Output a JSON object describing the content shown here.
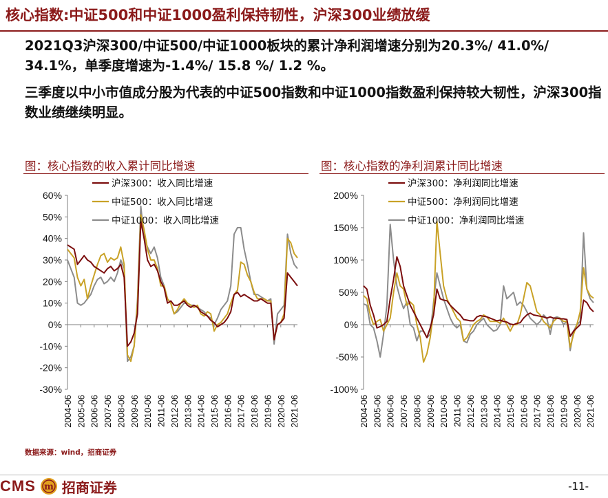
{
  "header": {
    "title": "核心指数:中证500和中证1000盈利保持韧性，沪深300业绩放缓"
  },
  "bullets": [
    "2021Q3沪深300/中证500/中证1000板块的累计净利润增速分别为20.3%/ 41.0%/ 34.1%，单季度增速为-1.4%/ 15.8 %/ 1.2 %。",
    "三季度以中小市值成分股为代表的中证500指数和中证1000指数盈利保持较大韧性，沪深300指数业绩继续明显。"
  ],
  "colors": {
    "brand": "#8b1a1a",
    "hs300": "#7b0d0d",
    "zz500": "#c9a227",
    "zz1000": "#8c8c8c"
  },
  "chart_data": [
    {
      "type": "line",
      "title": "图：核心指数的收入累计同比增速",
      "ylim": [
        -0.3,
        0.6
      ],
      "yticks": [
        "60%",
        "50%",
        "40%",
        "30%",
        "20%",
        "10%",
        "0%",
        "-10%",
        "-20%",
        "-30%"
      ],
      "ytick_values": [
        0.6,
        0.5,
        0.4,
        0.3,
        0.2,
        0.1,
        0.0,
        -0.1,
        -0.2,
        -0.3
      ],
      "xticks": [
        "2004-06",
        "2005-06",
        "2006-06",
        "2007-06",
        "2008-06",
        "2009-06",
        "2010-06",
        "2011-06",
        "2012-06",
        "2013-06",
        "2014-06",
        "2015-06",
        "2016-06",
        "2017-06",
        "2018-06",
        "2019-06",
        "2020-06",
        "2021-06"
      ],
      "x_start": 2004.5,
      "x_end": 2021.75,
      "legend_placement": "top-left",
      "series": [
        {
          "name": "沪深300：收入同比增速",
          "color_key": "hs300",
          "x": [
            2004.5,
            2004.75,
            2005.0,
            2005.25,
            2005.5,
            2005.75,
            2006.0,
            2006.25,
            2006.5,
            2006.75,
            2007.0,
            2007.25,
            2007.5,
            2007.75,
            2008.0,
            2008.25,
            2008.5,
            2008.75,
            2009.0,
            2009.25,
            2009.5,
            2009.75,
            2010.0,
            2010.25,
            2010.5,
            2010.75,
            2011.0,
            2011.25,
            2011.5,
            2011.75,
            2012.0,
            2012.25,
            2012.5,
            2012.75,
            2013.0,
            2013.25,
            2013.5,
            2013.75,
            2014.0,
            2014.25,
            2014.5,
            2014.75,
            2015.0,
            2015.25,
            2015.5,
            2015.75,
            2016.0,
            2016.25,
            2016.5,
            2016.75,
            2017.0,
            2017.25,
            2017.5,
            2017.75,
            2018.0,
            2018.25,
            2018.5,
            2018.75,
            2019.0,
            2019.25,
            2019.5,
            2019.75,
            2020.0,
            2020.25,
            2020.5,
            2020.75,
            2021.0,
            2021.25,
            2021.5,
            2021.75
          ],
          "values": [
            0.37,
            0.36,
            0.35,
            0.28,
            0.3,
            0.32,
            0.3,
            0.29,
            0.27,
            0.26,
            0.25,
            0.24,
            0.26,
            0.27,
            0.25,
            0.26,
            0.28,
            0.22,
            -0.1,
            -0.08,
            -0.04,
            0.05,
            0.48,
            0.4,
            0.3,
            0.27,
            0.28,
            0.25,
            0.2,
            0.17,
            0.1,
            0.11,
            0.09,
            0.09,
            0.1,
            0.11,
            0.09,
            0.08,
            0.09,
            0.08,
            0.06,
            0.05,
            0.04,
            0.02,
            0.01,
            -0.01,
            0.0,
            0.01,
            0.03,
            0.06,
            0.14,
            0.15,
            0.13,
            0.14,
            0.13,
            0.12,
            0.11,
            0.11,
            0.12,
            0.11,
            0.1,
            0.1,
            -0.07,
            0.0,
            0.01,
            0.03,
            0.24,
            0.22,
            0.2,
            0.18
          ]
        },
        {
          "name": "中证500：收入同比增速",
          "color_key": "zz500",
          "x": [
            2004.5,
            2004.75,
            2005.0,
            2005.25,
            2005.5,
            2005.75,
            2006.0,
            2006.25,
            2006.5,
            2006.75,
            2007.0,
            2007.25,
            2007.5,
            2007.75,
            2008.0,
            2008.25,
            2008.5,
            2008.75,
            2009.0,
            2009.25,
            2009.5,
            2009.75,
            2010.0,
            2010.25,
            2010.5,
            2010.75,
            2011.0,
            2011.25,
            2011.5,
            2011.75,
            2012.0,
            2012.25,
            2012.5,
            2012.75,
            2013.0,
            2013.25,
            2013.5,
            2013.75,
            2014.0,
            2014.25,
            2014.5,
            2014.75,
            2015.0,
            2015.25,
            2015.5,
            2015.75,
            2016.0,
            2016.25,
            2016.5,
            2016.75,
            2017.0,
            2017.25,
            2017.5,
            2017.75,
            2018.0,
            2018.25,
            2018.5,
            2018.75,
            2019.0,
            2019.25,
            2019.5,
            2019.75,
            2020.0,
            2020.25,
            2020.5,
            2020.75,
            2021.0,
            2021.25,
            2021.5,
            2021.75
          ],
          "values": [
            0.35,
            0.33,
            0.31,
            0.22,
            0.18,
            0.21,
            0.12,
            0.18,
            0.23,
            0.28,
            0.32,
            0.33,
            0.29,
            0.31,
            0.3,
            0.31,
            0.36,
            0.28,
            -0.14,
            -0.17,
            -0.1,
            0.1,
            0.51,
            0.44,
            0.35,
            0.3,
            0.3,
            0.26,
            0.18,
            0.18,
            0.12,
            0.1,
            0.05,
            0.07,
            0.1,
            0.12,
            0.1,
            0.09,
            0.08,
            0.09,
            0.05,
            0.04,
            0.06,
            0.05,
            -0.03,
            0.0,
            0.01,
            0.03,
            0.05,
            0.1,
            0.14,
            0.16,
            0.29,
            0.28,
            0.23,
            0.2,
            0.15,
            0.12,
            0.12,
            0.12,
            0.11,
            0.11,
            -0.07,
            0.0,
            0.01,
            0.05,
            0.4,
            0.38,
            0.33,
            0.31
          ]
        },
        {
          "name": "中证1000：收入同比增速",
          "color_key": "zz1000",
          "x": [
            2004.5,
            2004.75,
            2005.0,
            2005.25,
            2005.5,
            2005.75,
            2006.0,
            2006.25,
            2006.5,
            2006.75,
            2007.0,
            2007.25,
            2007.5,
            2007.75,
            2008.0,
            2008.25,
            2008.5,
            2008.75,
            2009.0,
            2009.25,
            2009.5,
            2009.75,
            2010.0,
            2010.25,
            2010.5,
            2010.75,
            2011.0,
            2011.25,
            2011.5,
            2011.75,
            2012.0,
            2012.25,
            2012.5,
            2012.75,
            2013.0,
            2013.25,
            2013.5,
            2013.75,
            2014.0,
            2014.25,
            2014.5,
            2014.75,
            2015.0,
            2015.25,
            2015.5,
            2015.75,
            2016.0,
            2016.25,
            2016.5,
            2016.75,
            2017.0,
            2017.25,
            2017.5,
            2017.75,
            2018.0,
            2018.25,
            2018.5,
            2018.75,
            2019.0,
            2019.25,
            2019.5,
            2019.75,
            2020.0,
            2020.25,
            2020.5,
            2020.75,
            2021.0,
            2021.25,
            2021.5,
            2021.75
          ],
          "values": [
            0.3,
            0.26,
            0.22,
            0.1,
            0.09,
            0.1,
            0.12,
            0.14,
            0.18,
            0.21,
            0.22,
            0.19,
            0.2,
            0.22,
            0.2,
            0.24,
            0.3,
            0.26,
            -0.17,
            -0.15,
            -0.1,
            0.12,
            0.55,
            0.4,
            0.36,
            0.33,
            0.36,
            0.31,
            0.22,
            0.18,
            0.12,
            0.1,
            0.05,
            0.06,
            0.08,
            0.1,
            0.1,
            0.09,
            0.09,
            0.08,
            0.07,
            0.06,
            0.04,
            0.03,
            0.0,
            0.03,
            0.07,
            0.09,
            0.11,
            0.18,
            0.42,
            0.45,
            0.45,
            0.35,
            0.28,
            0.2,
            0.14,
            0.14,
            0.13,
            0.12,
            0.11,
            0.12,
            -0.09,
            0.05,
            0.07,
            0.09,
            0.42,
            0.33,
            0.28,
            0.26
          ]
        }
      ]
    },
    {
      "type": "line",
      "title": "图：核心指数的净利润累计同比增速",
      "ylim": [
        -1.0,
        2.0
      ],
      "yticks": [
        "200%",
        "150%",
        "100%",
        "50%",
        "0%",
        "-50%",
        "-100%"
      ],
      "ytick_values": [
        2.0,
        1.5,
        1.0,
        0.5,
        0.0,
        -0.5,
        -1.0
      ],
      "xticks": [
        "2004-06",
        "2005-06",
        "2006-06",
        "2007-06",
        "2008-06",
        "2009-06",
        "2010-06",
        "2011-06",
        "2012-06",
        "2013-06",
        "2014-06",
        "2015-06",
        "2016-06",
        "2017-06",
        "2018-06",
        "2019-06",
        "2020-06",
        "2021-06"
      ],
      "x_start": 2004.5,
      "x_end": 2021.75,
      "legend_placement": "top-left",
      "series": [
        {
          "name": "沪深300：净利润同比增速",
          "color_key": "hs300",
          "x": [
            2004.5,
            2004.75,
            2005.0,
            2005.25,
            2005.5,
            2005.75,
            2006.0,
            2006.25,
            2006.5,
            2006.75,
            2007.0,
            2007.25,
            2007.5,
            2007.75,
            2008.0,
            2008.25,
            2008.5,
            2008.75,
            2009.0,
            2009.25,
            2009.5,
            2009.75,
            2010.0,
            2010.25,
            2010.5,
            2010.75,
            2011.0,
            2011.25,
            2011.5,
            2011.75,
            2012.0,
            2012.25,
            2012.5,
            2012.75,
            2013.0,
            2013.25,
            2013.5,
            2013.75,
            2014.0,
            2014.25,
            2014.5,
            2014.75,
            2015.0,
            2015.25,
            2015.5,
            2015.75,
            2016.0,
            2016.25,
            2016.5,
            2016.75,
            2017.0,
            2017.25,
            2017.5,
            2017.75,
            2018.0,
            2018.25,
            2018.5,
            2018.75,
            2019.0,
            2019.25,
            2019.5,
            2019.75,
            2020.0,
            2020.25,
            2020.5,
            2020.75,
            2021.0,
            2021.25,
            2021.5,
            2021.75
          ],
          "values": [
            0.6,
            0.55,
            0.3,
            0.15,
            -0.05,
            -0.03,
            0.0,
            0.05,
            0.4,
            0.7,
            1.05,
            0.9,
            0.6,
            0.45,
            0.3,
            0.2,
            0.1,
            0.0,
            -0.1,
            -0.2,
            -0.05,
            0.15,
            0.55,
            0.4,
            0.38,
            0.37,
            0.3,
            0.25,
            0.2,
            0.15,
            0.08,
            0.07,
            0.06,
            0.06,
            0.12,
            0.14,
            0.13,
            0.12,
            0.1,
            0.08,
            0.06,
            0.07,
            0.05,
            0.04,
            0.01,
            0.0,
            0.02,
            0.03,
            0.1,
            0.15,
            0.18,
            0.15,
            0.14,
            0.13,
            0.12,
            0.1,
            0.12,
            0.1,
            0.1,
            0.09,
            0.09,
            0.08,
            -0.18,
            -0.1,
            -0.05,
            0.0,
            0.38,
            0.34,
            0.25,
            0.2
          ]
        },
        {
          "name": "中证500：净利润同比增速",
          "color_key": "zz500",
          "x": [
            2004.5,
            2004.75,
            2005.0,
            2005.25,
            2005.5,
            2005.75,
            2006.0,
            2006.25,
            2006.5,
            2006.75,
            2007.0,
            2007.25,
            2007.5,
            2007.75,
            2008.0,
            2008.25,
            2008.5,
            2008.75,
            2009.0,
            2009.25,
            2009.5,
            2009.75,
            2010.0,
            2010.25,
            2010.5,
            2010.75,
            2011.0,
            2011.25,
            2011.5,
            2011.75,
            2012.0,
            2012.25,
            2012.5,
            2012.75,
            2013.0,
            2013.25,
            2013.5,
            2013.75,
            2014.0,
            2014.25,
            2014.5,
            2014.75,
            2015.0,
            2015.25,
            2015.5,
            2015.75,
            2016.0,
            2016.25,
            2016.5,
            2016.75,
            2017.0,
            2017.25,
            2017.5,
            2017.75,
            2018.0,
            2018.25,
            2018.5,
            2018.75,
            2019.0,
            2019.25,
            2019.5,
            2019.75,
            2020.0,
            2020.25,
            2020.5,
            2020.75,
            2021.0,
            2021.25,
            2021.5,
            2021.75
          ],
          "values": [
            0.45,
            0.4,
            0.15,
            0.0,
            0.05,
            0.08,
            -0.1,
            0.0,
            0.1,
            0.5,
            0.8,
            0.6,
            0.55,
            0.3,
            0.35,
            0.3,
            0.0,
            -0.2,
            -0.58,
            -0.45,
            -0.2,
            0.2,
            1.6,
            1.1,
            0.6,
            0.4,
            0.3,
            0.2,
            0.1,
            0.05,
            -0.25,
            -0.2,
            -0.1,
            0.0,
            0.05,
            0.08,
            0.15,
            0.12,
            0.05,
            0.05,
            0.05,
            0.02,
            0.1,
            0.0,
            -0.1,
            0.0,
            0.0,
            0.15,
            0.4,
            0.65,
            0.6,
            0.4,
            0.2,
            0.15,
            0.05,
            0.0,
            -0.05,
            0.05,
            0.1,
            0.1,
            0.05,
            0.05,
            -0.35,
            -0.15,
            0.0,
            0.2,
            0.88,
            0.55,
            0.45,
            0.41
          ]
        },
        {
          "name": "中证1000：净利润同比增速",
          "color_key": "zz1000",
          "x": [
            2004.5,
            2004.75,
            2005.0,
            2005.25,
            2005.5,
            2005.75,
            2006.0,
            2006.25,
            2006.5,
            2006.75,
            2007.0,
            2007.25,
            2007.5,
            2007.75,
            2008.0,
            2008.25,
            2008.5,
            2008.75,
            2009.0,
            2009.25,
            2009.5,
            2009.75,
            2010.0,
            2010.25,
            2010.5,
            2010.75,
            2011.0,
            2011.25,
            2011.5,
            2011.75,
            2012.0,
            2012.25,
            2012.5,
            2012.75,
            2013.0,
            2013.25,
            2013.5,
            2013.75,
            2014.0,
            2014.25,
            2014.5,
            2014.75,
            2015.0,
            2015.25,
            2015.5,
            2015.75,
            2016.0,
            2016.25,
            2016.5,
            2016.75,
            2017.0,
            2017.25,
            2017.5,
            2017.75,
            2018.0,
            2018.25,
            2018.5,
            2018.75,
            2019.0,
            2019.25,
            2019.5,
            2019.75,
            2020.0,
            2020.25,
            2020.5,
            2020.75,
            2021.0,
            2021.25,
            2021.5,
            2021.75
          ],
          "values": [
            0.32,
            0.3,
            0.0,
            -0.05,
            -0.25,
            -0.5,
            -0.15,
            0.3,
            1.55,
            1.0,
            0.6,
            0.4,
            0.25,
            0.35,
            0.0,
            -0.05,
            -0.25,
            -0.1,
            -0.1,
            -0.2,
            -0.15,
            0.35,
            0.8,
            0.6,
            0.4,
            0.25,
            0.1,
            0.0,
            -0.05,
            0.0,
            -0.25,
            -0.28,
            -0.15,
            -0.1,
            0.0,
            0.05,
            0.1,
            0.0,
            -0.05,
            -0.1,
            -0.08,
            0.0,
            0.6,
            0.4,
            0.45,
            0.5,
            0.3,
            0.35,
            0.3,
            0.2,
            0.1,
            0.05,
            0.0,
            0.05,
            0.15,
            0.1,
            -0.15,
            0.1,
            0.12,
            0.1,
            0.0,
            0.05,
            -0.4,
            -0.1,
            0.0,
            0.05,
            1.42,
            0.55,
            0.4,
            0.34
          ]
        }
      ]
    }
  ],
  "source": "数据来源：wind，招商证券",
  "footer": {
    "logo_text": "CMS",
    "logo_mark_text": "m",
    "company": "招商证券",
    "page": "-11-"
  }
}
